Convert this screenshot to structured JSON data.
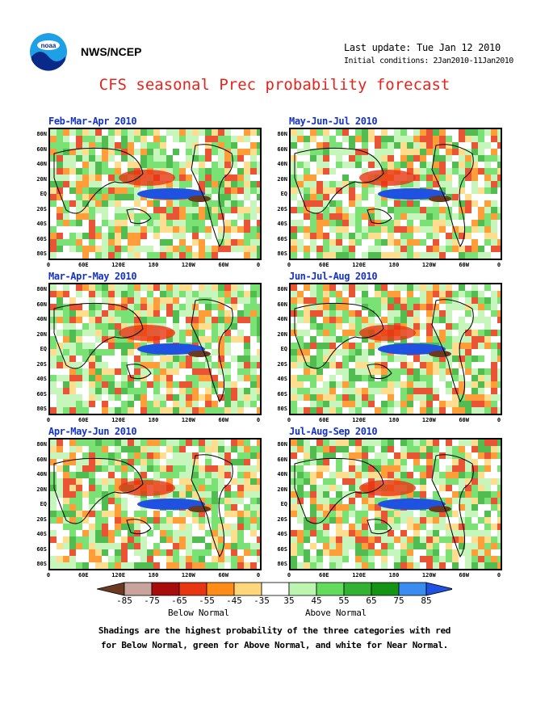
{
  "header": {
    "agency": "NWS/NCEP",
    "last_update": "Last update: Tue Jan 12 2010",
    "initial_conditions": "Initial conditions: 2Jan2010-11Jan2010",
    "title": "CFS seasonal Prec probability forecast"
  },
  "panels": [
    {
      "title": "Feb-Mar-Apr 2010"
    },
    {
      "title": "May-Jun-Jul 2010"
    },
    {
      "title": "Mar-Apr-May 2010"
    },
    {
      "title": "Jun-Jul-Aug 2010"
    },
    {
      "title": "Apr-May-Jun 2010"
    },
    {
      "title": "Jul-Aug-Sep 2010"
    }
  ],
  "lat_labels": [
    "80N",
    "60N",
    "40N",
    "20N",
    "EQ",
    "20S",
    "40S",
    "60S",
    "80S"
  ],
  "lon_labels": [
    "0",
    "60E",
    "120E",
    "180",
    "120W",
    "60W",
    "0"
  ],
  "legend": {
    "labels": [
      "-85",
      "-75",
      "-65",
      "-55",
      "-45",
      "-35",
      "35",
      "45",
      "55",
      "65",
      "75",
      "85"
    ],
    "colors": [
      "#6b3a20",
      "#c9a49c",
      "#a80d0d",
      "#e83512",
      "#ff8c16",
      "#ffd77a",
      "#ffffff",
      "#bcf5b0",
      "#63dc5d",
      "#32b232",
      "#149414",
      "#3a8cf0",
      "#1f52e0"
    ],
    "below_label": "Below Normal",
    "above_label": "Above Normal"
  },
  "caption": {
    "line1": "Shadings are the highest probability of the three categories with red",
    "line2": "for Below Normal, green for Above Normal, and white for Near Normal."
  }
}
